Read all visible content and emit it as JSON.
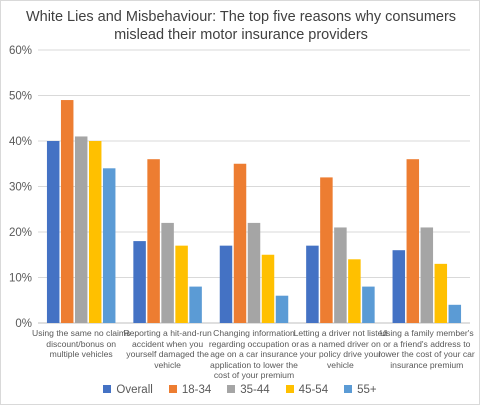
{
  "chart_data": {
    "type": "bar",
    "title": [
      "White Lies and Misbehaviour: The top five reasons why consumers",
      "mislead their motor insurance providers"
    ],
    "categories": [
      [
        "Using the same no claims",
        "discount/bonus on",
        "multiple vehicles"
      ],
      [
        "Reporting a hit-and-run",
        "accident when you",
        "yourself damaged the",
        "vehicle"
      ],
      [
        "Changing information",
        "regarding occupation or",
        "age on a car insurance",
        "application to lower the",
        "cost of your premium"
      ],
      [
        "Letting a driver not listed",
        "as a named driver on",
        "your policy drive your",
        "vehicle"
      ],
      [
        "Using a family member's",
        "or a friend's address to",
        "lower the cost of your car",
        "insurance premium"
      ]
    ],
    "series": [
      {
        "name": "Overall",
        "color": "#4472c4",
        "values": [
          40,
          18,
          17,
          17,
          16
        ]
      },
      {
        "name": "18-34",
        "color": "#ed7d31",
        "values": [
          49,
          36,
          35,
          32,
          36
        ]
      },
      {
        "name": "35-44",
        "color": "#a5a5a5",
        "values": [
          41,
          22,
          22,
          21,
          21
        ]
      },
      {
        "name": "45-54",
        "color": "#ffc000",
        "values": [
          40,
          17,
          15,
          14,
          13
        ]
      },
      {
        "name": "55+",
        "color": "#5b9bd5",
        "values": [
          34,
          8,
          6,
          8,
          4
        ]
      }
    ],
    "y_ticks": [
      "0%",
      "10%",
      "20%",
      "30%",
      "40%",
      "50%",
      "60%"
    ],
    "ylim": [
      0,
      60
    ],
    "grid": true,
    "legend_position": "bottom"
  }
}
